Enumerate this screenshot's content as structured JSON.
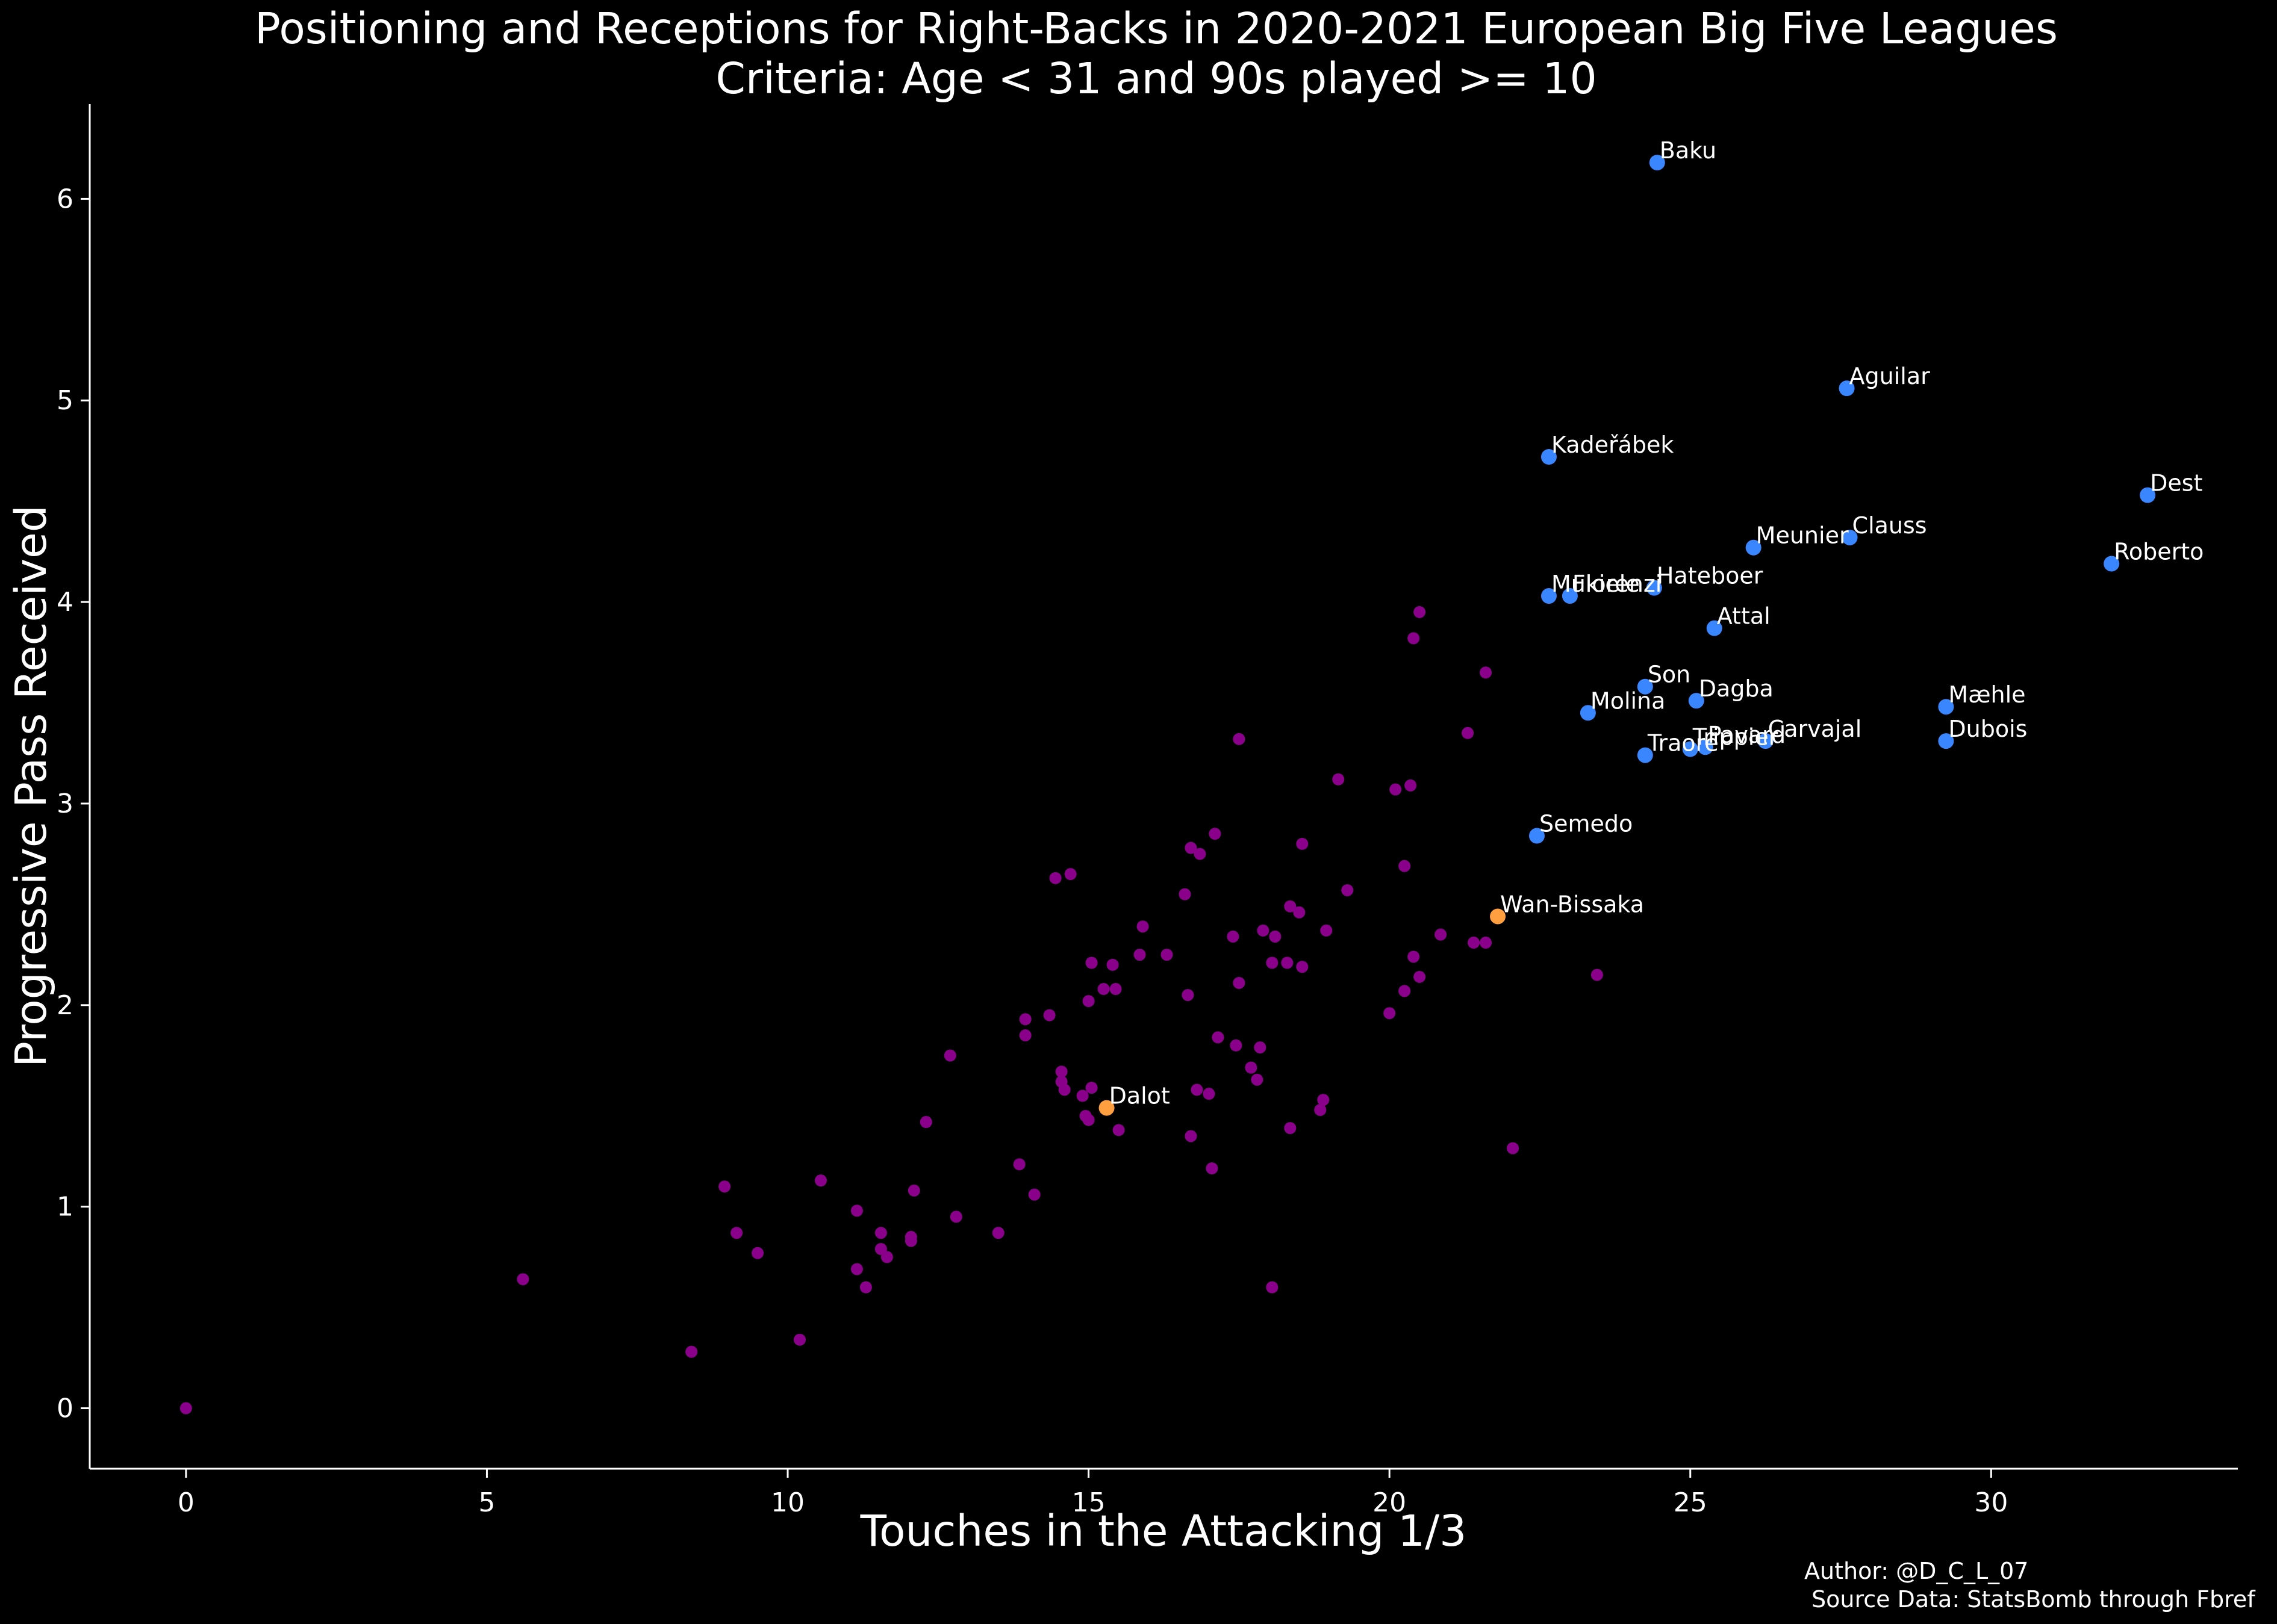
{
  "colors": {
    "background": "#000000",
    "text": "#ffffff",
    "others": "#8b008b",
    "highlight": "#3a86ff",
    "featured": "#ff9f40"
  },
  "credits": {
    "author": "Author: @D_C_L_07",
    "source": "Source Data: StatsBomb through Fbref"
  },
  "chart_data": {
    "type": "scatter",
    "title": "Positioning and Receptions for Right-Backs in 2020-2021 European Big Five Leagues",
    "subtitle": "Criteria: Age < 31 and 90s played >= 10",
    "xlabel": "Touches in the Attacking 1/3",
    "ylabel": "Progressive Pass Received",
    "xlim": [
      -1.6,
      34.1
    ],
    "ylim": [
      -0.3,
      6.47
    ],
    "xticks": [
      0,
      5,
      10,
      15,
      20,
      25,
      30
    ],
    "yticks": [
      0,
      1,
      2,
      3,
      4,
      5,
      6
    ],
    "grid": false,
    "legend": "none",
    "series": [
      {
        "group": "others",
        "color": "#8b008b",
        "points": [
          [
            0,
            0
          ],
          [
            5.6,
            0.64
          ],
          [
            8.4,
            0.28
          ],
          [
            8.95,
            1.1
          ],
          [
            9.15,
            0.87
          ],
          [
            9.5,
            0.77
          ],
          [
            10.2,
            0.34
          ],
          [
            10.55,
            1.13
          ],
          [
            11.15,
            0.98
          ],
          [
            11.15,
            0.69
          ],
          [
            11.3,
            0.6
          ],
          [
            11.55,
            0.87
          ],
          [
            11.55,
            0.79
          ],
          [
            11.65,
            0.75
          ],
          [
            12.05,
            0.85
          ],
          [
            12.05,
            0.83
          ],
          [
            12.1,
            1.08
          ],
          [
            12.3,
            1.42
          ],
          [
            12.7,
            1.75
          ],
          [
            12.8,
            0.95
          ],
          [
            13.5,
            0.87
          ],
          [
            13.85,
            1.21
          ],
          [
            13.95,
            1.93
          ],
          [
            13.95,
            1.85
          ],
          [
            14.1,
            1.06
          ],
          [
            14.35,
            1.95
          ],
          [
            14.45,
            2.63
          ],
          [
            14.55,
            1.67
          ],
          [
            14.55,
            1.62
          ],
          [
            14.6,
            1.58
          ],
          [
            14.7,
            2.65
          ],
          [
            14.9,
            1.55
          ],
          [
            14.95,
            1.45
          ],
          [
            15.0,
            2.02
          ],
          [
            15.0,
            1.43
          ],
          [
            15.05,
            2.21
          ],
          [
            15.05,
            1.59
          ],
          [
            15.25,
            2.08
          ],
          [
            15.4,
            2.2
          ],
          [
            15.45,
            2.08
          ],
          [
            15.5,
            1.38
          ],
          [
            15.85,
            2.25
          ],
          [
            15.9,
            2.39
          ],
          [
            16.3,
            2.25
          ],
          [
            16.6,
            2.55
          ],
          [
            16.65,
            2.05
          ],
          [
            16.7,
            1.35
          ],
          [
            16.7,
            2.78
          ],
          [
            16.8,
            1.58
          ],
          [
            16.85,
            2.75
          ],
          [
            17.0,
            1.56
          ],
          [
            17.05,
            1.19
          ],
          [
            17.1,
            2.85
          ],
          [
            17.15,
            1.84
          ],
          [
            17.4,
            2.34
          ],
          [
            17.45,
            1.8
          ],
          [
            17.5,
            3.32
          ],
          [
            17.5,
            2.11
          ],
          [
            17.7,
            1.69
          ],
          [
            17.8,
            1.63
          ],
          [
            17.85,
            1.79
          ],
          [
            17.9,
            2.37
          ],
          [
            18.05,
            2.21
          ],
          [
            18.05,
            0.6
          ],
          [
            18.1,
            2.34
          ],
          [
            18.3,
            2.21
          ],
          [
            18.35,
            2.49
          ],
          [
            18.35,
            1.39
          ],
          [
            18.5,
            2.46
          ],
          [
            18.55,
            2.8
          ],
          [
            18.55,
            2.19
          ],
          [
            18.85,
            1.48
          ],
          [
            18.9,
            1.53
          ],
          [
            18.95,
            2.37
          ],
          [
            19.15,
            3.12
          ],
          [
            19.3,
            2.57
          ],
          [
            20.0,
            1.96
          ],
          [
            20.1,
            3.07
          ],
          [
            20.25,
            2.07
          ],
          [
            20.25,
            2.69
          ],
          [
            20.35,
            3.09
          ],
          [
            20.4,
            2.24
          ],
          [
            20.4,
            3.82
          ],
          [
            20.5,
            3.95
          ],
          [
            20.5,
            2.14
          ],
          [
            20.85,
            2.35
          ],
          [
            21.3,
            3.35
          ],
          [
            21.4,
            2.31
          ],
          [
            21.6,
            3.65
          ],
          [
            21.6,
            2.31
          ],
          [
            22.05,
            1.29
          ],
          [
            23.45,
            2.15
          ]
        ]
      },
      {
        "group": "highlight",
        "color": "#3a86ff",
        "points": [
          {
            "name": "Baku",
            "x": 24.45,
            "y": 6.18
          },
          {
            "name": "Aguilar",
            "x": 27.6,
            "y": 5.06
          },
          {
            "name": "Kadeřábek",
            "x": 22.65,
            "y": 4.72
          },
          {
            "name": "Dest",
            "x": 32.6,
            "y": 4.53
          },
          {
            "name": "Clauss",
            "x": 27.65,
            "y": 4.32
          },
          {
            "name": "Meunier",
            "x": 26.05,
            "y": 4.27
          },
          {
            "name": "Roberto",
            "x": 32.0,
            "y": 4.19
          },
          {
            "name": "Hateboer",
            "x": 24.4,
            "y": 4.07
          },
          {
            "name": "Mukiele",
            "x": 22.65,
            "y": 4.03
          },
          {
            "name": "Florenzi",
            "x": 23.0,
            "y": 4.03
          },
          {
            "name": "Attal",
            "x": 25.4,
            "y": 3.87
          },
          {
            "name": "Son",
            "x": 24.25,
            "y": 3.58
          },
          {
            "name": "Dagba",
            "x": 25.1,
            "y": 3.51
          },
          {
            "name": "Mæhle",
            "x": 29.25,
            "y": 3.48
          },
          {
            "name": "Molina",
            "x": 23.3,
            "y": 3.45
          },
          {
            "name": "Dubois",
            "x": 29.25,
            "y": 3.31
          },
          {
            "name": "Carvajal",
            "x": 26.25,
            "y": 3.31
          },
          {
            "name": "Pavard",
            "x": 25.25,
            "y": 3.28
          },
          {
            "name": "Trippier",
            "x": 25.0,
            "y": 3.27
          },
          {
            "name": "Traoré",
            "x": 24.25,
            "y": 3.24
          },
          {
            "name": "Semedo",
            "x": 22.45,
            "y": 2.84
          }
        ]
      },
      {
        "group": "featured",
        "color": "#ff9f40",
        "points": [
          {
            "name": "Wan-Bissaka",
            "x": 21.8,
            "y": 2.44
          },
          {
            "name": "Dalot",
            "x": 15.3,
            "y": 1.49
          }
        ]
      }
    ]
  }
}
